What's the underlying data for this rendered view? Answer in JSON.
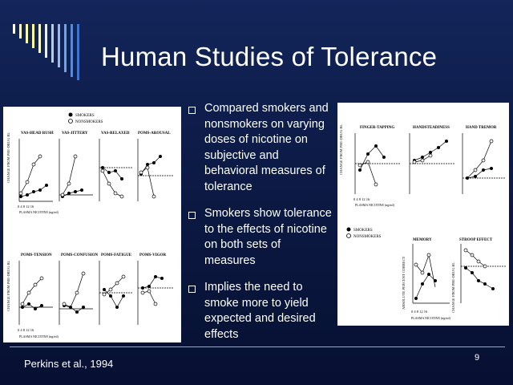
{
  "slide": {
    "title": "Human Studies of Tolerance",
    "bullets": [
      "Compared smokers and nonsmokers on varying doses of nicotine on subjective and behavioral measures of tolerance",
      "Smokers show tolerance to the effects of nicotine on both sets of measures",
      "Implies the need to smoke more to yield expected and desired effects"
    ],
    "citation": "Perkins et al., 1994",
    "page_number": "9"
  },
  "left_figure": {
    "legend": [
      "SMOKERS",
      "NONSMOKERS"
    ],
    "ylabel": "CHANGE FROM PRE-DRUG BL",
    "xlabel": "PLASMA NICOTINE (ng/ml)",
    "xticks": [
      "0",
      "4",
      "8",
      "12",
      "16"
    ],
    "row1_titles": [
      "VAS-HEAD RUSH",
      "VAS-JITTERY",
      "VAS-RELAXED",
      "POMS-AROUSAL"
    ],
    "row2_titles": [
      "POMS-TENSION",
      "POMS-CONFUSION",
      "POMS-FATIGUE",
      "POMS-VIGOR"
    ]
  },
  "right_figure": {
    "top_titles": [
      "FINGER-TAPPING",
      "HANDSTEADINESS",
      "HAND TREMOR"
    ],
    "bottom_titles": [
      "MEMORY",
      "STROOP EFFECT"
    ],
    "legend": [
      "SMOKERS",
      "NONSMOKERS"
    ],
    "ylabel_top": "CHANGE FROM PRE-DRUG BL",
    "ylabel_memory": "ABSOLUTE PERCENT CORRECT",
    "ylabel_stroop": "CHANGE FROM PRE-DRUG BL",
    "xlabel": "PLASMA NICOTINE (ng/ml)",
    "xticks": [
      "0",
      "4",
      "8",
      "12",
      "16"
    ]
  }
}
